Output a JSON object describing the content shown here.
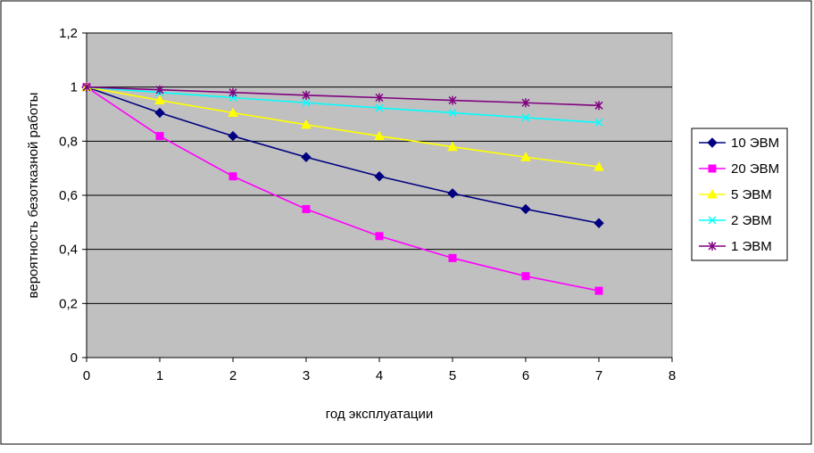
{
  "chart_data": {
    "type": "line",
    "title": "",
    "xlabel": "год эксплуатации",
    "ylabel": "вероятность безотказной работы",
    "xlim": [
      0,
      8
    ],
    "ylim": [
      0,
      1.2
    ],
    "x_ticks": [
      "0",
      "1",
      "2",
      "3",
      "4",
      "5",
      "6",
      "7",
      "8"
    ],
    "y_ticks": [
      "0",
      "0,2",
      "0,4",
      "0,6",
      "0,8",
      "1",
      "1,2"
    ],
    "grid": "horizontal",
    "legend_position": "right",
    "plot_background": "#c0c0c0",
    "x": [
      0,
      1,
      2,
      3,
      4,
      5,
      6,
      7
    ],
    "series": [
      {
        "name": "10 ЭВМ",
        "color": "#000080",
        "marker": "diamond",
        "values": [
          1.0,
          0.905,
          0.819,
          0.741,
          0.67,
          0.607,
          0.549,
          0.497
        ]
      },
      {
        "name": "20 ЭВМ",
        "color": "#ff00ff",
        "marker": "square",
        "values": [
          1.0,
          0.819,
          0.67,
          0.549,
          0.449,
          0.368,
          0.301,
          0.247
        ]
      },
      {
        "name": "5 ЭВМ",
        "color": "#ffff00",
        "marker": "triangle",
        "values": [
          1.0,
          0.951,
          0.905,
          0.861,
          0.819,
          0.779,
          0.741,
          0.705
        ]
      },
      {
        "name": "2 ЭВМ",
        "color": "#00ffff",
        "marker": "x",
        "values": [
          1.0,
          0.98,
          0.961,
          0.942,
          0.923,
          0.905,
          0.887,
          0.869
        ]
      },
      {
        "name": "1 ЭВМ",
        "color": "#800080",
        "marker": "star",
        "values": [
          1.0,
          0.99,
          0.98,
          0.97,
          0.961,
          0.951,
          0.942,
          0.932
        ]
      }
    ]
  }
}
